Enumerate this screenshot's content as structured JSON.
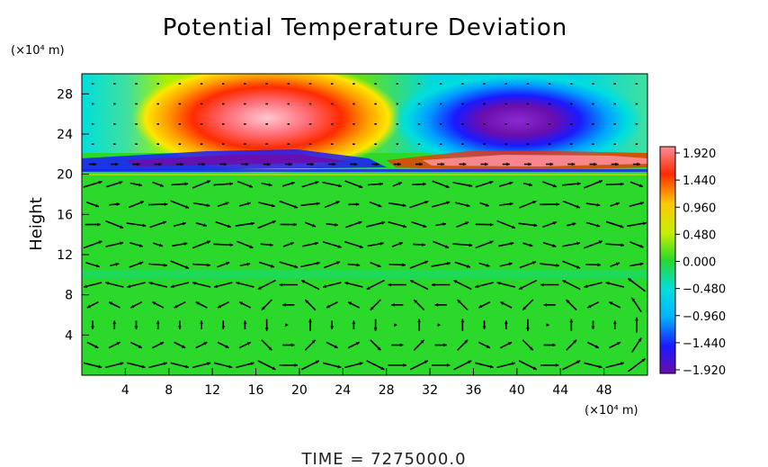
{
  "chart_data": {
    "type": "heatmap",
    "title": "Potential Temperature Deviation",
    "ylabel": "Height",
    "x_unit": "(×10⁴ m)",
    "y_unit": "(×10⁴ m)",
    "xlim": [
      0,
      52
    ],
    "ylim": [
      0,
      30
    ],
    "x_ticks": [
      4,
      8,
      12,
      16,
      20,
      24,
      28,
      32,
      36,
      40,
      44,
      48
    ],
    "y_ticks": [
      4,
      8,
      12,
      16,
      20,
      24,
      28
    ],
    "colorbar": {
      "ticks": [
        "1.920",
        "1.440",
        "0.960",
        "0.480",
        "0.000",
        "−0.480",
        "−0.960",
        "−1.440",
        "−1.920"
      ],
      "min": -1.92,
      "max": 1.92
    },
    "features": [
      {
        "kind": "warm_anomaly",
        "x": 17,
        "y": 25.3,
        "value": 1.92
      },
      {
        "kind": "cold_anomaly",
        "x": 40,
        "y": 25.1,
        "value": -1.92
      },
      {
        "kind": "cold_layer",
        "x_range": [
          2,
          30
        ],
        "y": 21,
        "value": -1.6
      },
      {
        "kind": "warm_layer",
        "x_range": [
          32,
          52
        ],
        "y": 21,
        "value": 1.6
      }
    ],
    "vector_field": true,
    "grid": false,
    "time_label": "TIME = 7275000.0"
  },
  "colors": {
    "background_field": "#2ad92a",
    "colorbar_stops": [
      "#6a0dad",
      "#1a1aff",
      "#00b4ff",
      "#00dede",
      "#2ad92a",
      "#c8f000",
      "#ffc800",
      "#ff2a00",
      "#ff8c96"
    ]
  }
}
